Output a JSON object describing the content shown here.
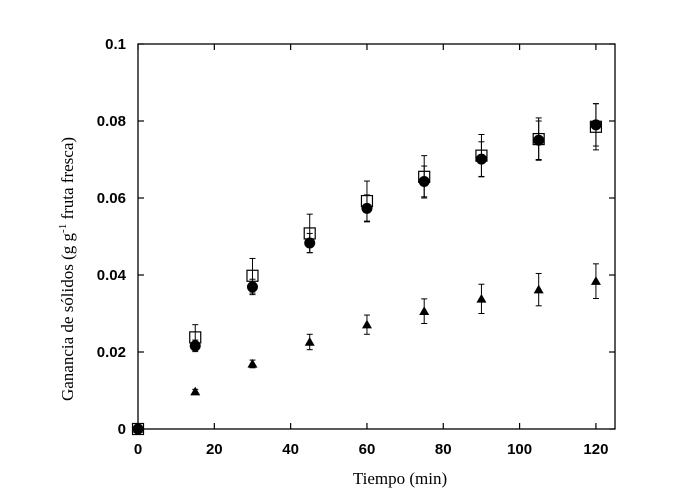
{
  "chart_data": {
    "type": "scatter",
    "xlabel": "Tiempo (min)",
    "ylabel": {
      "pre": "Ganancia de sólidos (g g",
      "sup": "-1",
      "post": " fruta fresca)"
    },
    "xlim": [
      0,
      125
    ],
    "ylim": [
      0,
      0.1
    ],
    "x_ticks": [
      0,
      20,
      40,
      60,
      80,
      100,
      120
    ],
    "y_ticks": [
      0,
      0.02,
      0.04,
      0.06,
      0.08,
      0.1
    ],
    "x_tick_labels": [
      "0",
      "20",
      "40",
      "60",
      "80",
      "100",
      "120"
    ],
    "y_tick_labels": [
      "0",
      "0.02",
      "0.04",
      "0.06",
      "0.08",
      "0.1"
    ],
    "grid": false,
    "legend": "none",
    "series": [
      {
        "marker": "open-square",
        "x": [
          0,
          15,
          30,
          45,
          60,
          75,
          90,
          105,
          120
        ],
        "y": [
          0,
          0.0238,
          0.0398,
          0.0508,
          0.0592,
          0.0655,
          0.071,
          0.0753,
          0.0785
        ],
        "err": [
          0,
          0.0033,
          0.0045,
          0.005,
          0.0052,
          0.0055,
          0.0055,
          0.0055,
          0.006
        ]
      },
      {
        "marker": "filled-circle",
        "x": [
          0,
          15,
          30,
          45,
          60,
          75,
          90,
          105,
          120
        ],
        "y": [
          0,
          0.0216,
          0.0369,
          0.0483,
          0.0573,
          0.0643,
          0.0701,
          0.075,
          0.079
        ],
        "err": [
          0,
          0.0015,
          0.002,
          0.0025,
          0.0035,
          0.004,
          0.0045,
          0.005,
          0.0055
        ]
      },
      {
        "marker": "filled-triangle",
        "x": [
          0,
          15,
          30,
          45,
          60,
          75,
          90,
          105,
          120
        ],
        "y": [
          0,
          0.0097,
          0.0169,
          0.0226,
          0.0271,
          0.0306,
          0.0338,
          0.0362,
          0.0384
        ],
        "err": [
          0,
          0.0006,
          0.001,
          0.002,
          0.0025,
          0.0032,
          0.0038,
          0.0042,
          0.0045
        ]
      }
    ]
  }
}
